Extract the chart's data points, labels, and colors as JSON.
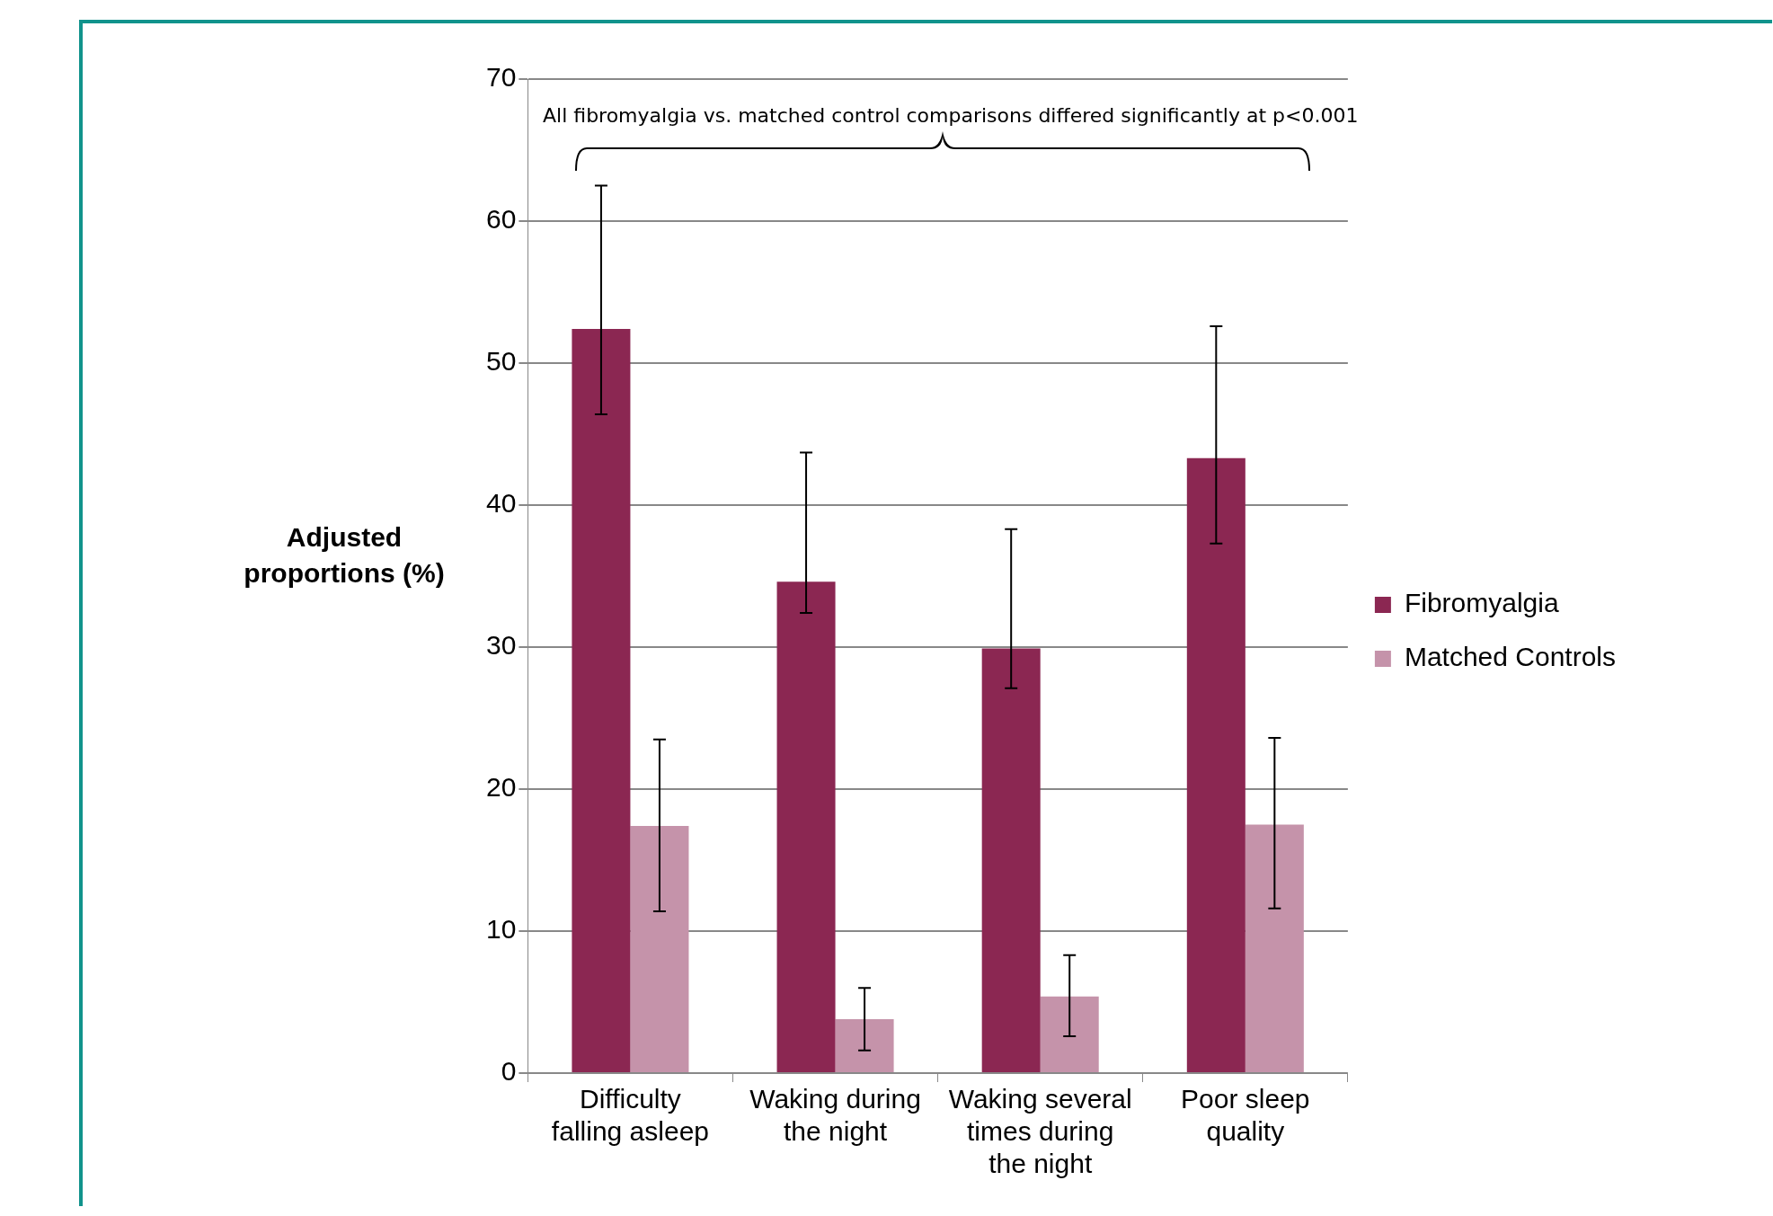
{
  "chart_data": {
    "type": "bar",
    "ylabel": "Adjusted proportions (%)",
    "annotations": [
      "All fibromyalgia vs. matched control comparisons differed significantly at p<0.001"
    ],
    "categories": [
      "Difficulty falling asleep",
      "Waking during the night",
      "Waking several times during the night",
      "Poor sleep quality"
    ],
    "series": [
      {
        "name": "Fibromyalgia",
        "color": "#8b2752",
        "values": [
          52.4,
          34.6,
          29.9,
          43.3
        ],
        "errors": [
          [
            46.4,
            62.5
          ],
          [
            32.4,
            43.7
          ],
          [
            27.1,
            38.3
          ],
          [
            37.3,
            52.6
          ]
        ]
      },
      {
        "name": "Matched Controls",
        "color": "#c593aa",
        "values": [
          17.4,
          3.8,
          5.4,
          17.5
        ],
        "errors": [
          [
            11.4,
            23.5
          ],
          [
            1.6,
            6.0
          ],
          [
            2.6,
            8.3
          ],
          [
            11.6,
            23.6
          ]
        ]
      }
    ],
    "ylim": [
      0,
      70
    ],
    "yticks": [
      0,
      10,
      20,
      30,
      40,
      50,
      60,
      70
    ],
    "grid": "y",
    "legend": "right"
  }
}
